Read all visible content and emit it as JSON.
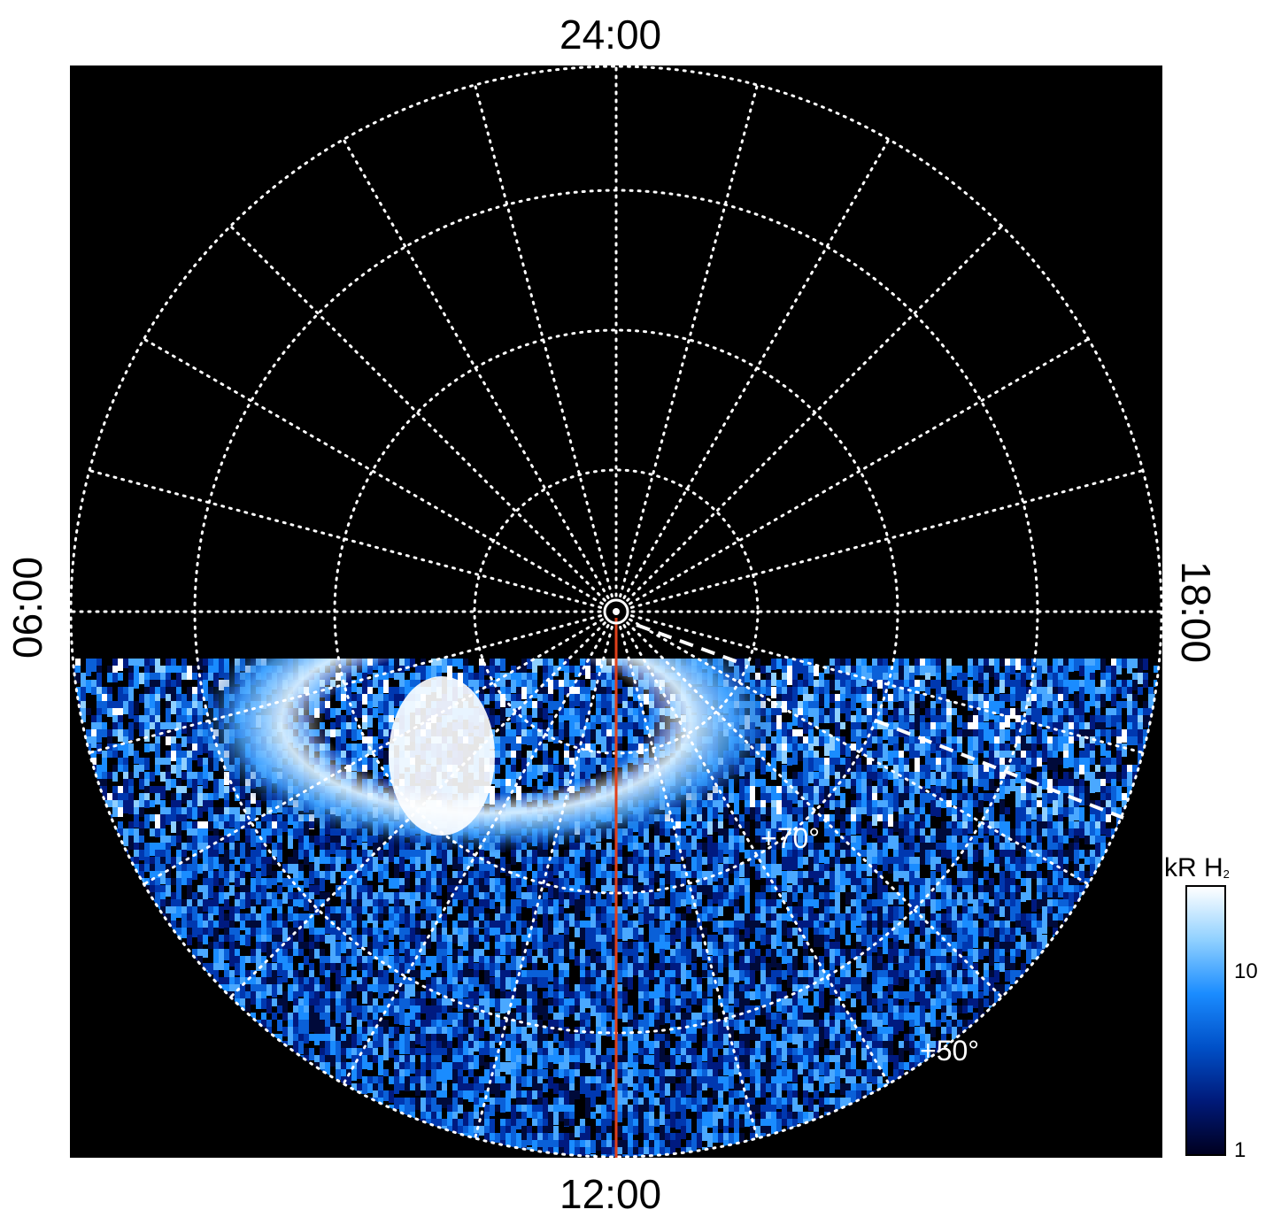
{
  "axes": {
    "top_label": "24:00",
    "bottom_label": "12:00",
    "left_label": "06:00",
    "right_label": "18:00"
  },
  "grid": {
    "latitude_labels": [
      "+70°",
      "+50°"
    ],
    "meridians_count": 24,
    "color": "#ffffff"
  },
  "colorbar": {
    "title": "kR H",
    "title_sub": "2",
    "ticks": [
      "10",
      "1"
    ],
    "colors": [
      "#000020",
      "#001a7a",
      "#0050c8",
      "#1a8cff",
      "#8fd0ff",
      "#ffffff"
    ]
  },
  "colors": {
    "background": "#000000",
    "red_line": "#e0401a",
    "auroral_bright": "#ffffff",
    "auroral_mid": "#4aa8ff",
    "noise_dark": "#001a80"
  }
}
